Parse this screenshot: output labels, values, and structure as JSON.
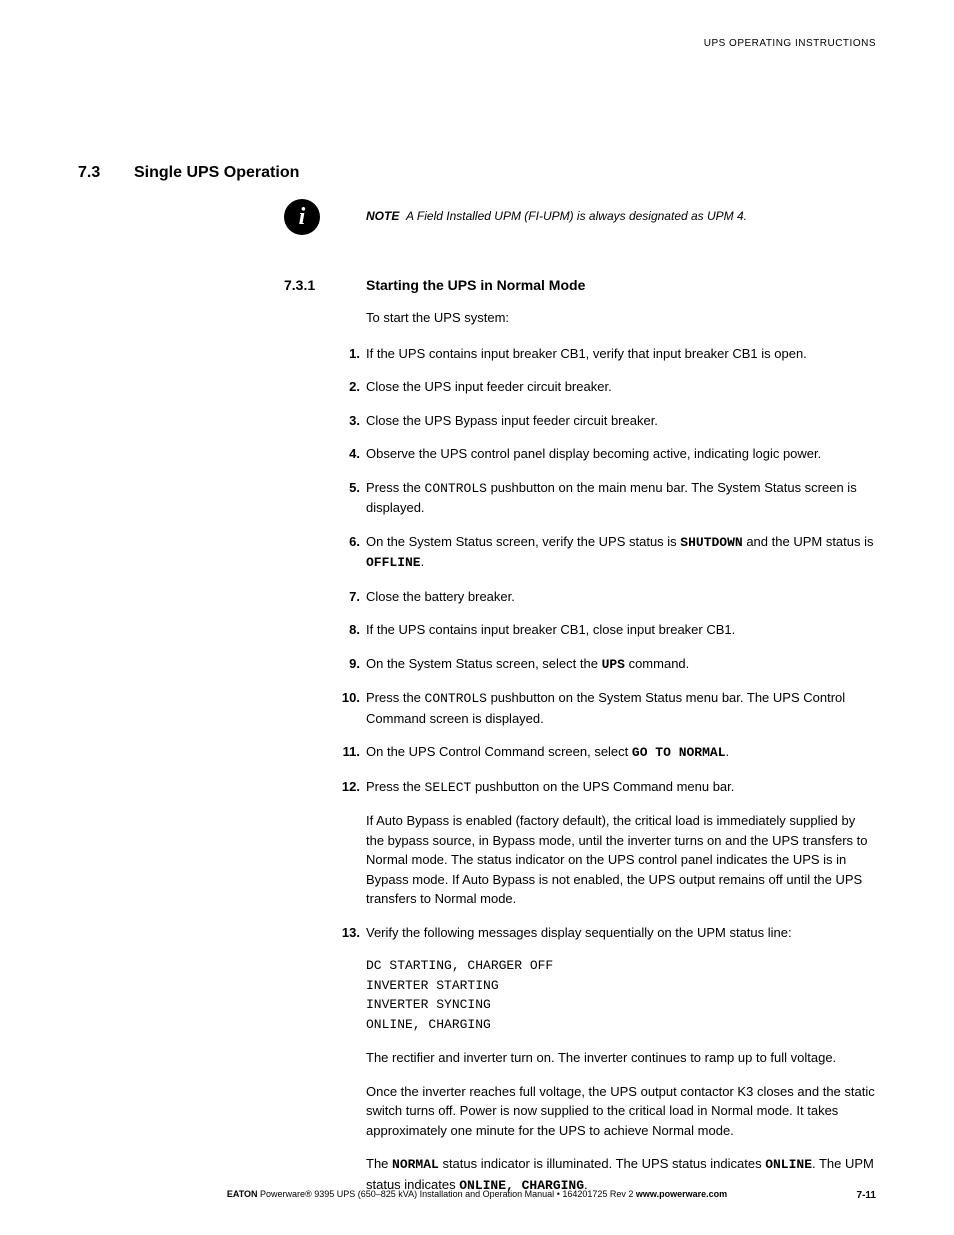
{
  "running_head": "UPS OPERATING INSTRUCTIONS",
  "section": {
    "num": "7.3",
    "title": "Single UPS Operation"
  },
  "note": {
    "label": "NOTE",
    "text": "A Field Installed UPM (FI-UPM) is always designated as UPM 4."
  },
  "subsection": {
    "num": "7.3.1",
    "title": "Starting the UPS in Normal Mode"
  },
  "intro": "To start the UPS system:",
  "steps": [
    {
      "n": "1.",
      "parts": [
        {
          "text": "If the UPS contains input breaker CB1, verify that input breaker CB1 is open."
        }
      ]
    },
    {
      "n": "2.",
      "parts": [
        {
          "text": "Close the UPS input feeder circuit breaker."
        }
      ]
    },
    {
      "n": "3.",
      "parts": [
        {
          "text": "Close the UPS Bypass input feeder circuit breaker."
        }
      ]
    },
    {
      "n": "4.",
      "parts": [
        {
          "text": "Observe the UPS control panel display becoming active, indicating logic power."
        }
      ]
    },
    {
      "n": "5.",
      "parts": [
        {
          "text": "Press the "
        },
        {
          "text": "CONTROLS",
          "cls": "mono"
        },
        {
          "text": " pushbutton on the main menu bar. The System Status screen is displayed."
        }
      ]
    },
    {
      "n": "6.",
      "parts": [
        {
          "text": "On the System Status screen, verify the UPS status is "
        },
        {
          "text": "SHUTDOWN",
          "cls": "monob"
        },
        {
          "text": " and the UPM status is "
        },
        {
          "text": "OFFLINE",
          "cls": "monob"
        },
        {
          "text": "."
        }
      ]
    },
    {
      "n": "7.",
      "parts": [
        {
          "text": "Close the battery breaker."
        }
      ]
    },
    {
      "n": "8.",
      "parts": [
        {
          "text": "If the UPS contains input breaker CB1, close input breaker CB1."
        }
      ]
    },
    {
      "n": "9.",
      "parts": [
        {
          "text": "On the System Status screen, select the "
        },
        {
          "text": "UPS",
          "cls": "monob"
        },
        {
          "text": " command."
        }
      ]
    },
    {
      "n": "10.",
      "parts": [
        {
          "text": "Press the "
        },
        {
          "text": "CONTROLS",
          "cls": "mono"
        },
        {
          "text": " pushbutton on the System Status menu bar. The UPS Control Command screen is displayed."
        }
      ]
    },
    {
      "n": "11.",
      "parts": [
        {
          "text": "On the UPS Control Command screen, select "
        },
        {
          "text": "GO TO NORMAL",
          "cls": "monob"
        },
        {
          "text": "."
        }
      ]
    },
    {
      "n": "12.",
      "parts": [
        {
          "text": "Press the "
        },
        {
          "text": "SELECT",
          "cls": "mono"
        },
        {
          "text": " pushbutton on the UPS Command menu bar."
        }
      ],
      "subparas": [
        "If Auto Bypass is enabled (factory default), the critical load is immediately supplied by the bypass source, in Bypass mode, until the inverter turns on and the UPS transfers to Normal mode. The status indicator on the UPS control panel indicates the UPS is in Bypass mode. If Auto Bypass is not enabled, the UPS output remains off until the UPS transfers to Normal mode."
      ]
    },
    {
      "n": "13.",
      "parts": [
        {
          "text": "Verify the following messages display sequentially on the UPM status line:"
        }
      ],
      "code": "DC STARTING, CHARGER OFF\nINVERTER STARTING\nINVERTER SYNCING\nONLINE, CHARGING",
      "subparas": [
        "The rectifier and inverter turn on. The inverter continues to ramp up to full voltage.",
        "Once the inverter reaches full voltage, the UPS output contactor K3 closes and the static switch turns off. Power is now supplied to the critical load in Normal mode. It takes approximately one minute for the UPS to achieve Normal mode."
      ],
      "tail_parts": [
        {
          "text": "The "
        },
        {
          "text": "NORMAL",
          "cls": "monob"
        },
        {
          "text": " status indicator is illuminated. The UPS status indicates "
        },
        {
          "text": "ONLINE",
          "cls": "monob"
        },
        {
          "text": ". The UPM status indicates "
        },
        {
          "text": "ONLINE, CHARGING",
          "cls": "monob"
        },
        {
          "text": "."
        }
      ]
    }
  ],
  "footer": {
    "brand": "EATON",
    "product": "Powerware® 9395 UPS (650–825 kVA) Installation and Operation Manual",
    "sep": " • ",
    "doc": "164201725 Rev 2",
    "url": "www.powerware.com",
    "page": "7-11"
  }
}
